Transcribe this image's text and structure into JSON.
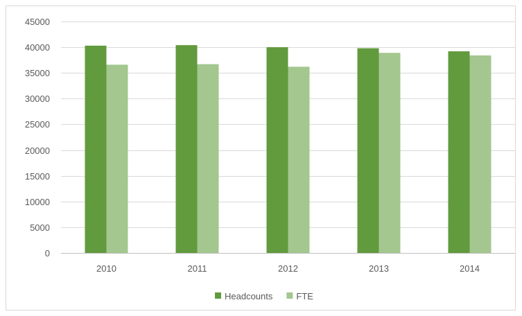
{
  "chart_data": {
    "type": "bar",
    "categories": [
      "2010",
      "2011",
      "2012",
      "2013",
      "2014"
    ],
    "series": [
      {
        "name": "Headcounts",
        "color": "#629a3e",
        "values": [
          40300,
          40400,
          40000,
          39800,
          39200
        ]
      },
      {
        "name": "FTE",
        "color": "#a3c78f",
        "values": [
          36600,
          36700,
          36200,
          38900,
          38400
        ]
      }
    ],
    "ylim": [
      0,
      45000
    ],
    "yticks": [
      0,
      5000,
      10000,
      15000,
      20000,
      25000,
      30000,
      35000,
      40000,
      45000
    ],
    "ytick_labels": [
      "0",
      "5000",
      "10000",
      "15000",
      "20000",
      "25000",
      "30000",
      "35000",
      "40000",
      "45000"
    ],
    "grid": true,
    "legend_position": "bottom",
    "title": "",
    "xlabel": "",
    "ylabel": ""
  }
}
